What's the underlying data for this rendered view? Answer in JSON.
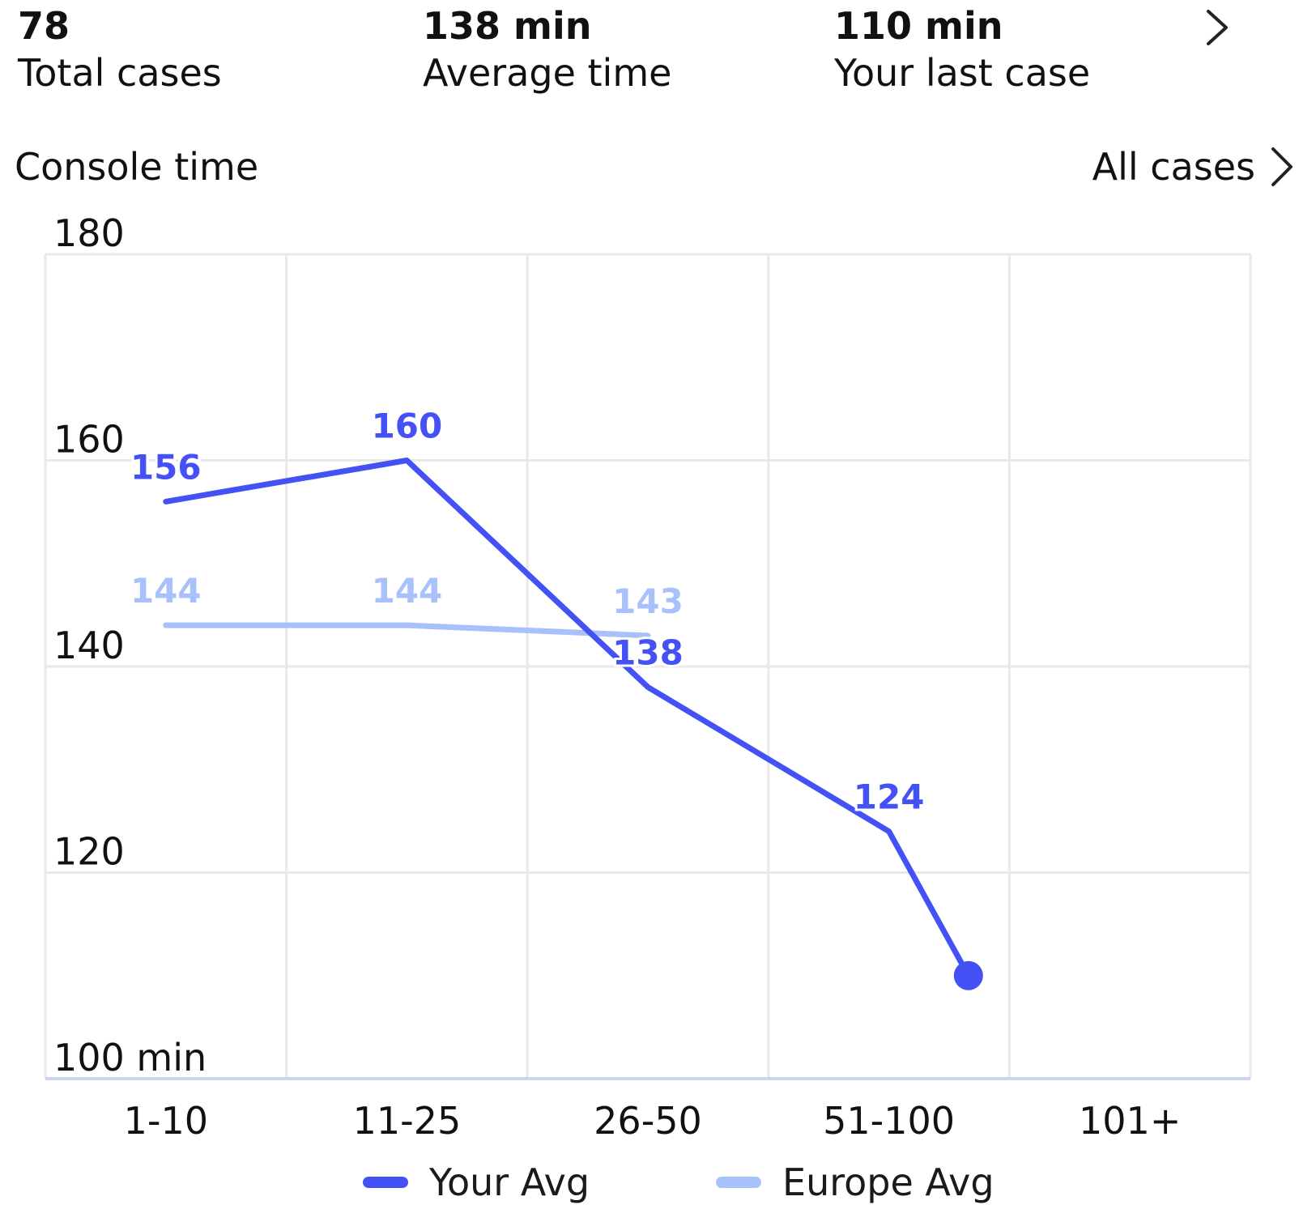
{
  "summary": {
    "stats": [
      {
        "value": "78",
        "label": "Total cases"
      },
      {
        "value": "138 min",
        "label": "Average time"
      },
      {
        "value": "110 min",
        "label": "Your last case"
      }
    ]
  },
  "section": {
    "title": "Console time",
    "link_label": "All cases"
  },
  "colors": {
    "your_avg": "#4452f5",
    "europe_avg": "#a9c1fb",
    "grid": "#e9e9e9",
    "axis": "#c9d6f1"
  },
  "chart_data": {
    "type": "line",
    "categories": [
      "1-10",
      "11-25",
      "26-50",
      "51-100",
      "101+"
    ],
    "y_ticks": [
      "180",
      "160",
      "140",
      "120",
      "100 min"
    ],
    "ylim": [
      100,
      180
    ],
    "grid": true,
    "legend_position": "bottom",
    "series": [
      {
        "name": "Your Avg",
        "points": [
          {
            "x": 0,
            "y": 156,
            "label": "156"
          },
          {
            "x": 1,
            "y": 160,
            "label": "160"
          },
          {
            "x": 2,
            "y": 138,
            "label": "138"
          },
          {
            "x": 3,
            "y": 124,
            "label": "124"
          },
          {
            "x": 3.33,
            "y": 110,
            "label": null,
            "marker": true
          }
        ]
      },
      {
        "name": "Europe Avg",
        "points": [
          {
            "x": 0,
            "y": 144,
            "label": "144"
          },
          {
            "x": 1,
            "y": 144,
            "label": "144"
          },
          {
            "x": 2,
            "y": 143,
            "label": "143"
          }
        ]
      }
    ]
  }
}
